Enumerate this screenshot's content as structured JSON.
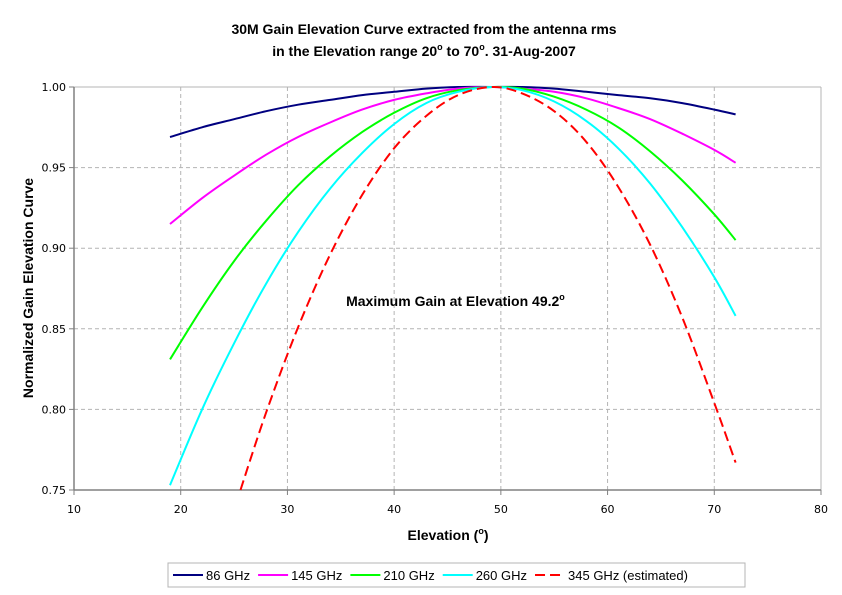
{
  "chart_data": {
    "type": "line",
    "title": [
      "30M Gain Elevation Curve extracted from the antenna rms",
      "in the Elevation range 20° to 70°. 31-Aug-2007"
    ],
    "title_lines": [
      {
        "text": "30M Gain Elevation Curve extracted from the antenna rms",
        "sup": ""
      },
      {
        "text": "in the Elevation range 20",
        "sup": "o",
        "text2": " to 70",
        "sup2": "o",
        "text3": ". 31-Aug-2007"
      }
    ],
    "xlabel": "Elevation (",
    "xlabel_sup": "o",
    "xlabel_end": ")",
    "ylabel": "Normalized Gain Elevation Curve",
    "xlim": [
      10,
      80
    ],
    "ylim": [
      0.75,
      1.0
    ],
    "xticks": [
      "10",
      "20",
      "30",
      "40",
      "50",
      "60",
      "70",
      "80"
    ],
    "yticks": [
      "0.75",
      "0.80",
      "0.85",
      "0.90",
      "0.95",
      "1.00"
    ],
    "grid": true,
    "legend_position": "bottom",
    "annotation": {
      "text": "Maximum Gain at Elevation 49.2",
      "sup": "o",
      "x": 35.5,
      "y": 0.864
    },
    "x": [
      19,
      22,
      25,
      28,
      31,
      34,
      37,
      40,
      43,
      46,
      49.2,
      52,
      55,
      58,
      61,
      64,
      67,
      70,
      72
    ],
    "series": [
      {
        "name": "86 GHz",
        "color": "#000080",
        "dashed": false,
        "values": [
          0.969,
          0.975,
          0.98,
          0.985,
          0.989,
          0.992,
          0.995,
          0.997,
          0.999,
          1.0,
          1.0,
          1.0,
          0.999,
          0.997,
          0.995,
          0.993,
          0.99,
          0.986,
          0.983
        ]
      },
      {
        "name": "145 GHz",
        "color": "#ff00ff",
        "dashed": false,
        "values": [
          0.915,
          0.931,
          0.945,
          0.958,
          0.969,
          0.978,
          0.986,
          0.992,
          0.996,
          0.999,
          1.0,
          0.999,
          0.997,
          0.993,
          0.987,
          0.98,
          0.971,
          0.961,
          0.953
        ]
      },
      {
        "name": "210 GHz",
        "color": "#00ff00",
        "dashed": false,
        "values": [
          0.831,
          0.863,
          0.892,
          0.917,
          0.939,
          0.957,
          0.972,
          0.984,
          0.993,
          0.998,
          1.0,
          0.999,
          0.994,
          0.986,
          0.975,
          0.96,
          0.942,
          0.921,
          0.905
        ]
      },
      {
        "name": "260 GHz",
        "color": "#00ffff",
        "dashed": false,
        "values": [
          0.753,
          0.8,
          0.841,
          0.878,
          0.91,
          0.937,
          0.959,
          0.977,
          0.99,
          0.997,
          1.0,
          0.998,
          0.991,
          0.979,
          0.962,
          0.94,
          0.913,
          0.882,
          0.858
        ]
      },
      {
        "name": "345 GHz (estimated)",
        "color": "#ff0000",
        "dashed": true,
        "x_start": 25.6,
        "values": [
          null,
          null,
          0.75,
          0.798,
          0.851,
          0.896,
          0.933,
          0.962,
          0.982,
          0.995,
          1.0,
          0.996,
          0.985,
          0.966,
          0.938,
          0.902,
          0.857,
          0.804,
          0.767
        ]
      }
    ]
  }
}
